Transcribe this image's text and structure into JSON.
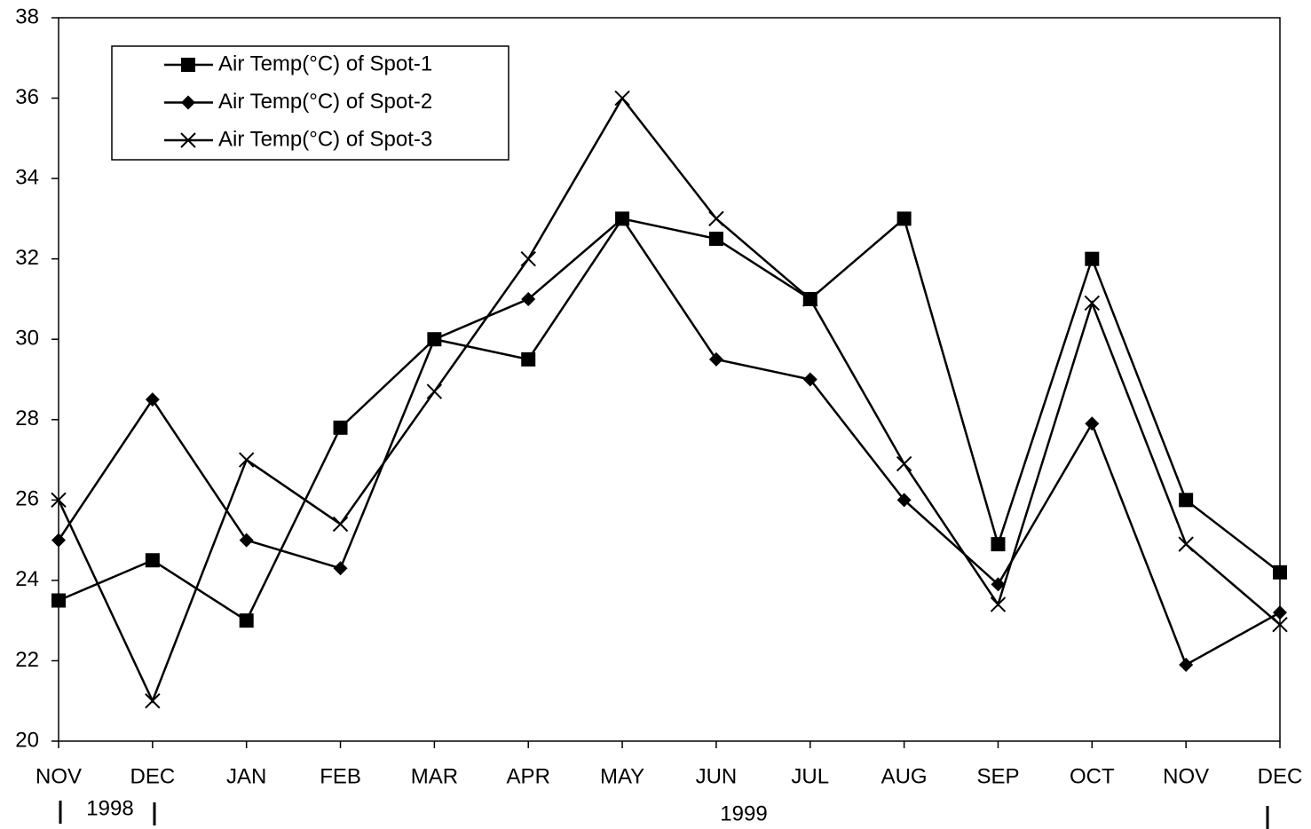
{
  "chart_data": {
    "type": "line",
    "categories": [
      "NOV",
      "DEC",
      "JAN",
      "FEB",
      "MAR",
      "APR",
      "MAY",
      "JUN",
      "JUL",
      "AUG",
      "SEP",
      "OCT",
      "NOV",
      "DEC"
    ],
    "series": [
      {
        "name": "Air Temp(°C) of Spot-1",
        "color": "#000000",
        "marker": "square",
        "values": [
          23.5,
          24.5,
          23,
          27.8,
          30,
          29.5,
          33,
          32.5,
          31,
          33,
          24.9,
          32,
          26,
          24.2
        ]
      },
      {
        "name": "Air Temp(°C) of Spot-2",
        "color": "#000000",
        "marker": "diamond",
        "values": [
          25,
          28.5,
          25,
          24.3,
          30,
          31,
          33,
          29.5,
          29,
          26,
          23.9,
          27.9,
          21.9,
          23.2
        ]
      },
      {
        "name": "Air Temp(°C) of Spot-3",
        "color": "#000000",
        "marker": "x",
        "values": [
          26,
          21,
          27,
          25.4,
          28.7,
          32,
          36,
          33,
          31,
          26.9,
          23.4,
          30.9,
          24.9,
          22.9
        ]
      }
    ],
    "ylim": [
      20,
      38
    ],
    "yticks": [
      20,
      22,
      24,
      26,
      28,
      30,
      32,
      34,
      36,
      38
    ],
    "grid": false,
    "legend": "upper left",
    "year_labels": [
      "1998",
      "1999"
    ]
  }
}
